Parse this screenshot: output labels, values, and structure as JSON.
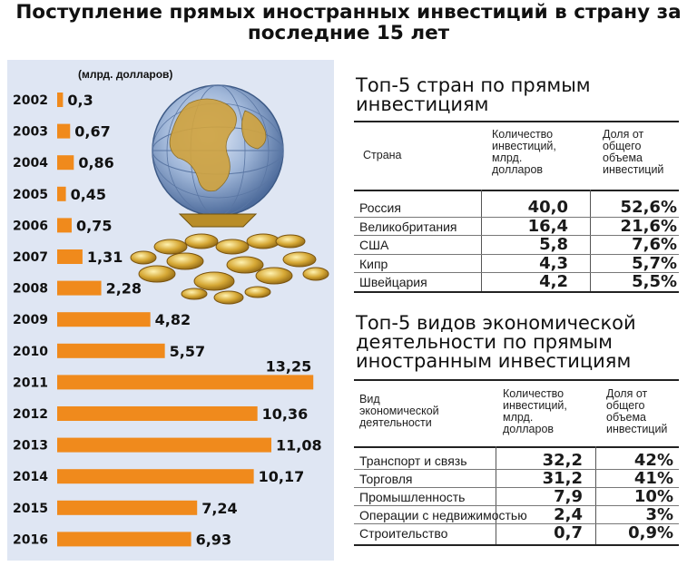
{
  "title": "Поступление прямых иностранных инвестиций в страну за последние 15 лет",
  "chart_data": {
    "type": "bar",
    "orientation": "horizontal",
    "unit_label": "(млрд. долларов)",
    "categories": [
      "2002",
      "2003",
      "2004",
      "2005",
      "2006",
      "2007",
      "2008",
      "2009",
      "2010",
      "2011",
      "2012",
      "2013",
      "2014",
      "2015",
      "2016"
    ],
    "values": [
      0.3,
      0.67,
      0.86,
      0.45,
      0.75,
      1.31,
      2.28,
      4.82,
      5.57,
      13.25,
      10.36,
      11.08,
      10.17,
      7.24,
      6.93
    ],
    "value_labels": [
      "0,3",
      "0,67",
      "0,86",
      "0,45",
      "0,75",
      "1,31",
      "2,28",
      "4,82",
      "5,57",
      "13,25",
      "10,36",
      "11,08",
      "10,17",
      "7,24",
      "6,93"
    ],
    "bar_color": "#f08a1c"
  },
  "countries": {
    "title_lines": [
      "Топ-5 стран по прямым",
      "инвестициям"
    ],
    "headers": {
      "name": "Страна",
      "amount": "Количество\nинвестиций,\nмлрд.\nдолларов",
      "share": "Доля от\nобщего\nобъема\nинвестиций"
    },
    "rows": [
      {
        "name": "Россия",
        "amount": "40,0",
        "share": "52,6%"
      },
      {
        "name": "Великобритания",
        "amount": "16,4",
        "share": "21,6%"
      },
      {
        "name": "США",
        "amount": "5,8",
        "share": "7,6%"
      },
      {
        "name": "Кипр",
        "amount": "4,3",
        "share": "5,7%"
      },
      {
        "name": "Швейцария",
        "amount": "4,2",
        "share": "5,5%"
      }
    ]
  },
  "activities": {
    "title_lines": [
      "Топ-5 видов экономической",
      "деятельности по прямым",
      "иностранным инвестициям"
    ],
    "headers": {
      "name": "Вид\nэкономической\nдеятельности",
      "amount": "Количество\nинвестиций,\nмлрд.\nдолларов",
      "share": "Доля от\nобщего\nобъема\nинвестиций"
    },
    "rows": [
      {
        "name": "Транспорт и связь",
        "amount": "32,2",
        "share": "42%"
      },
      {
        "name": "Торговля",
        "amount": "31,2",
        "share": "41%"
      },
      {
        "name": "Промышленность",
        "amount": "7,9",
        "share": "10%"
      },
      {
        "name": "Операции с недвижимостью",
        "amount": "2,4",
        "share": "3%"
      },
      {
        "name": "Строительство",
        "amount": "0,7",
        "share": "0,9%"
      }
    ]
  }
}
